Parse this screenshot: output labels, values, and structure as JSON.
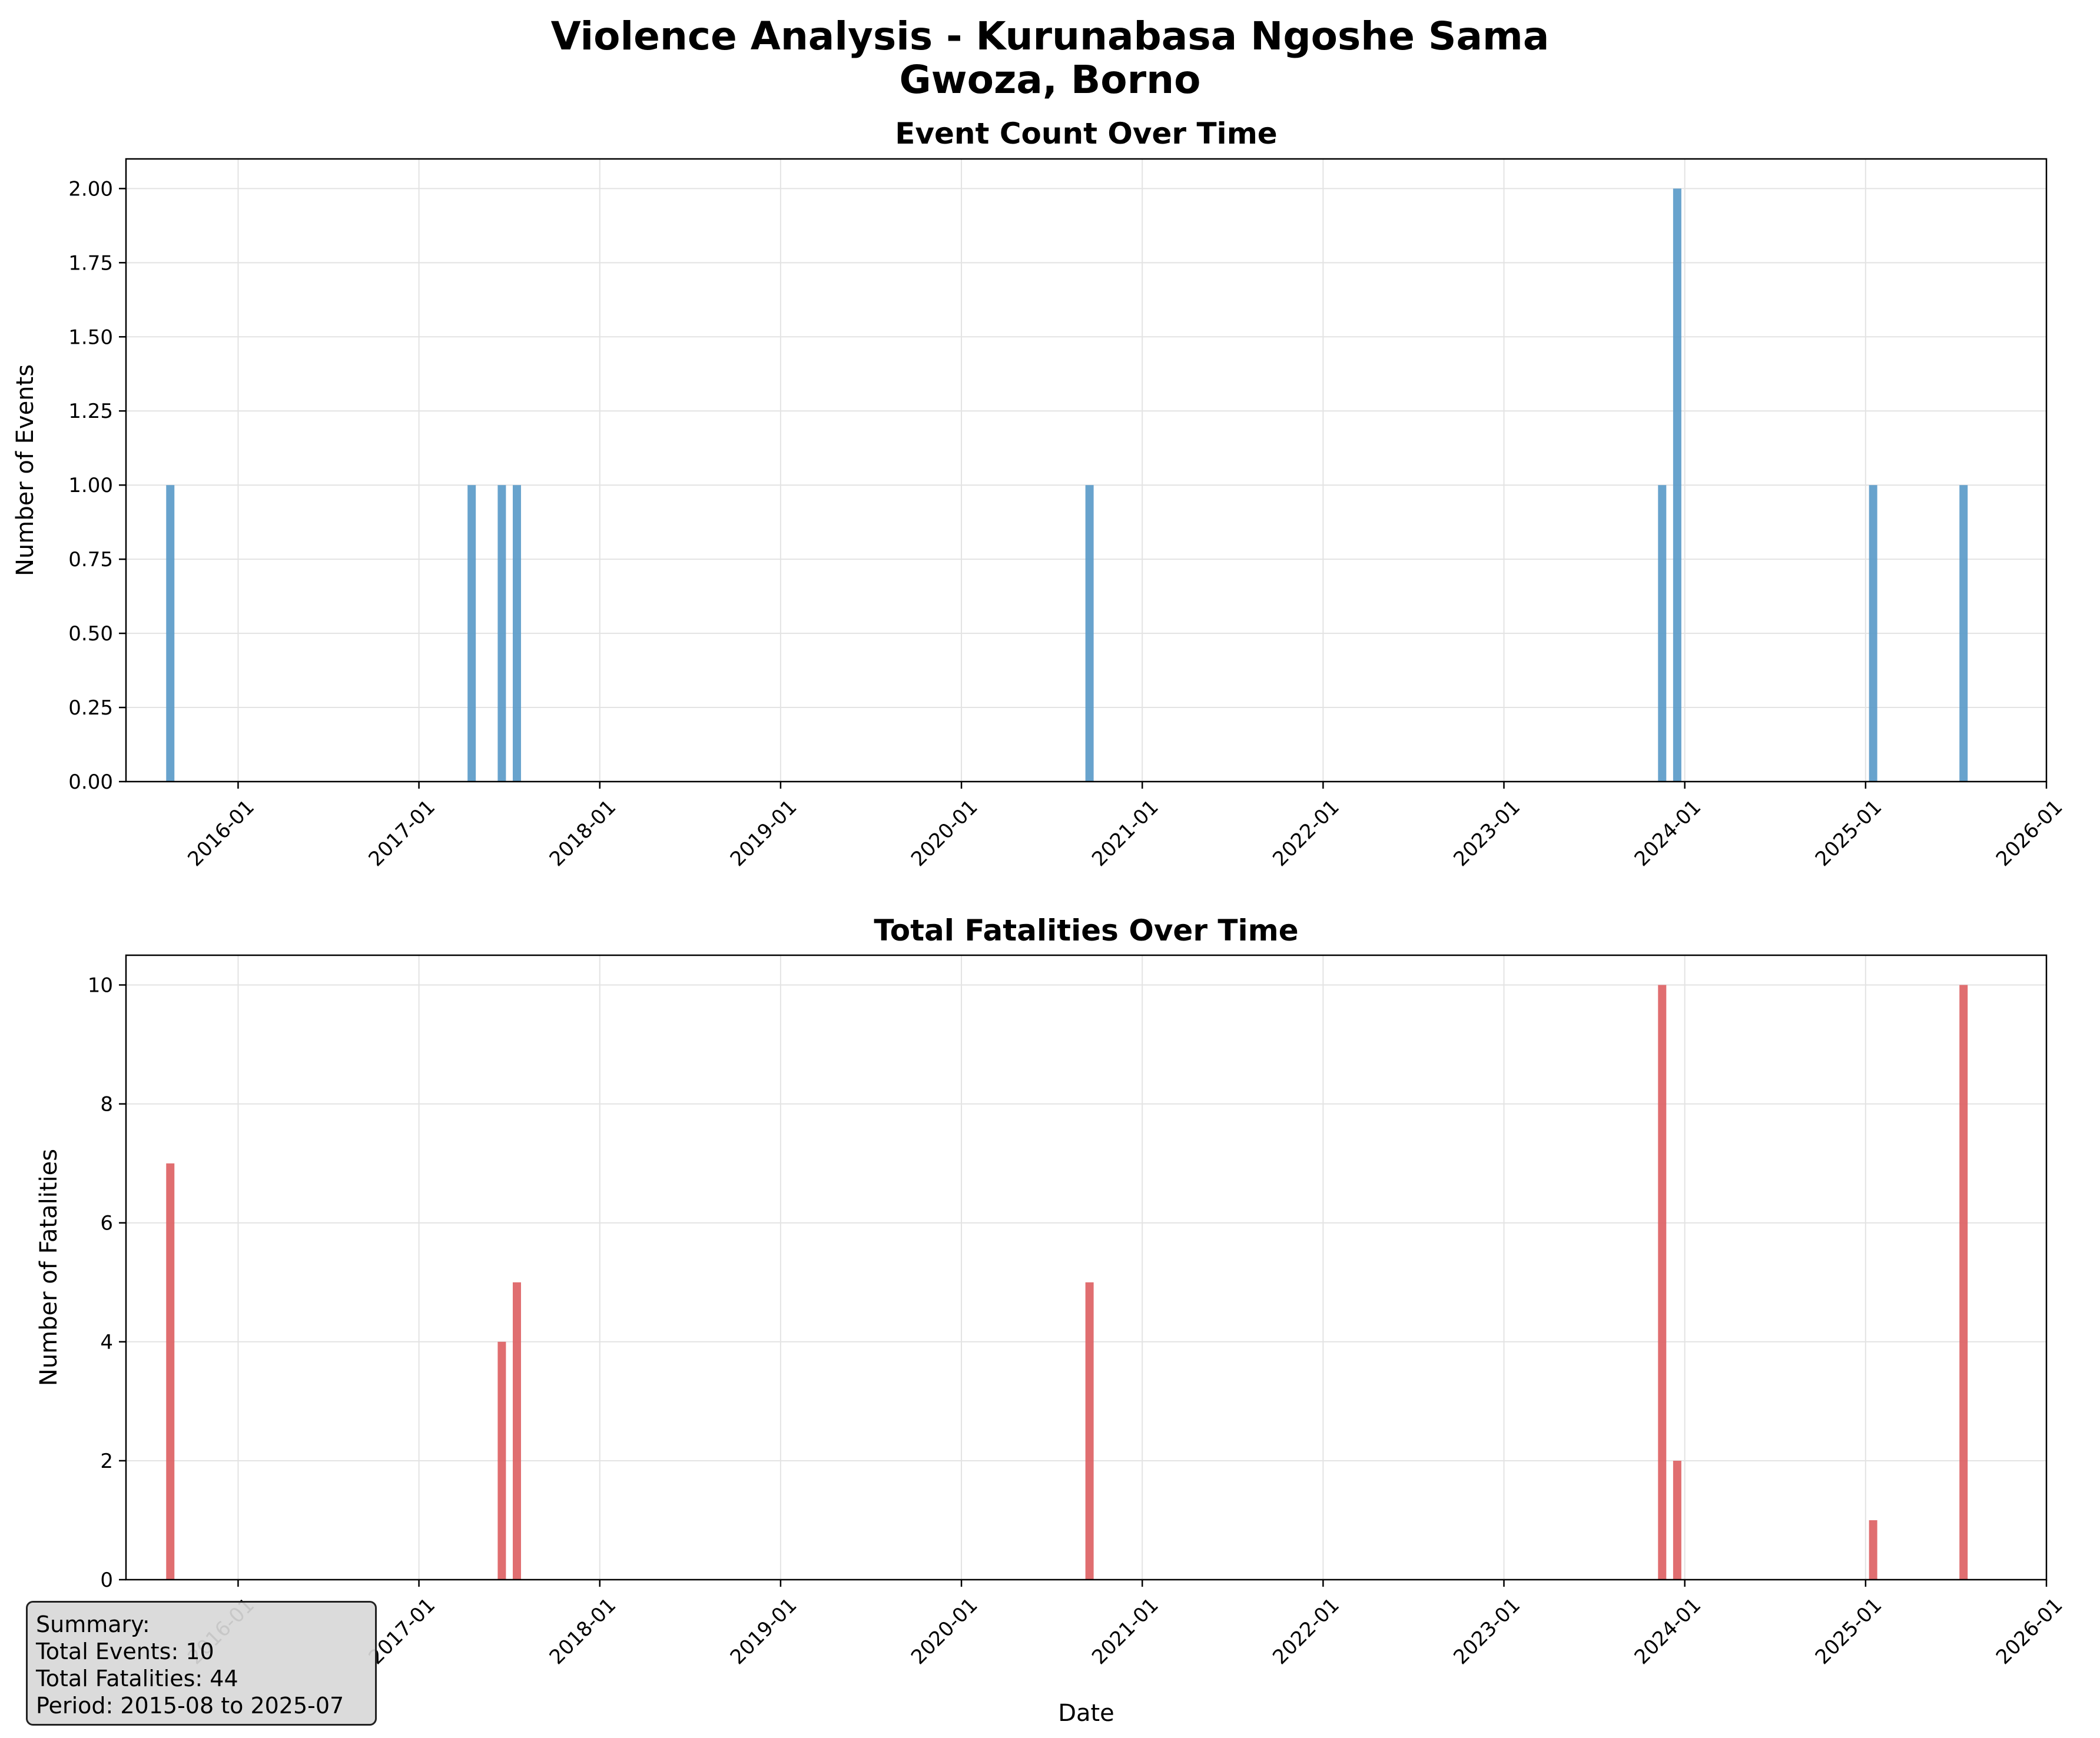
{
  "figure": {
    "title_line1": "Violence Analysis - Kurunabasa Ngoshe Sama",
    "title_line2": "Gwoza, Borno"
  },
  "summary": {
    "heading": "Summary:",
    "events": "Total Events: 10",
    "fatalities": "Total Fatalities: 44",
    "period": "Period: 2015-08 to 2025-07"
  },
  "chart_data": [
    {
      "type": "bar",
      "title": "Event Count Over Time",
      "xlabel": "",
      "ylabel": "Number of Events",
      "color": "#5b9bc9",
      "x": [
        "2015-08",
        "2017-04",
        "2017-06",
        "2017-07",
        "2020-09",
        "2023-11",
        "2023-12",
        "2025-01",
        "2025-07"
      ],
      "values": [
        1,
        1,
        1,
        1,
        1,
        1,
        2,
        1,
        1
      ],
      "ylim": [
        0,
        2.1
      ],
      "yticks": [
        "0.00",
        "0.25",
        "0.50",
        "0.75",
        "1.00",
        "1.25",
        "1.50",
        "1.75",
        "2.00"
      ],
      "xticks": [
        "2016-01",
        "2017-01",
        "2018-01",
        "2019-01",
        "2020-01",
        "2021-01",
        "2022-01",
        "2023-01",
        "2024-01",
        "2025-01",
        "2026-01"
      ],
      "grid": true
    },
    {
      "type": "bar",
      "title": "Total Fatalities Over Time",
      "xlabel": "Date",
      "ylabel": "Number of Fatalities",
      "color": "#dd6264",
      "x": [
        "2015-08",
        "2017-04",
        "2017-06",
        "2017-07",
        "2020-09",
        "2023-11",
        "2023-12",
        "2025-01",
        "2025-07"
      ],
      "values": [
        7,
        0,
        4,
        5,
        5,
        10,
        2,
        1,
        10
      ],
      "ylim": [
        0,
        10.5
      ],
      "yticks": [
        "0",
        "2",
        "4",
        "6",
        "8",
        "10"
      ],
      "xticks": [
        "2016-01",
        "2017-01",
        "2018-01",
        "2019-01",
        "2020-01",
        "2021-01",
        "2022-01",
        "2023-01",
        "2024-01",
        "2025-01",
        "2026-01"
      ],
      "grid": true
    }
  ]
}
